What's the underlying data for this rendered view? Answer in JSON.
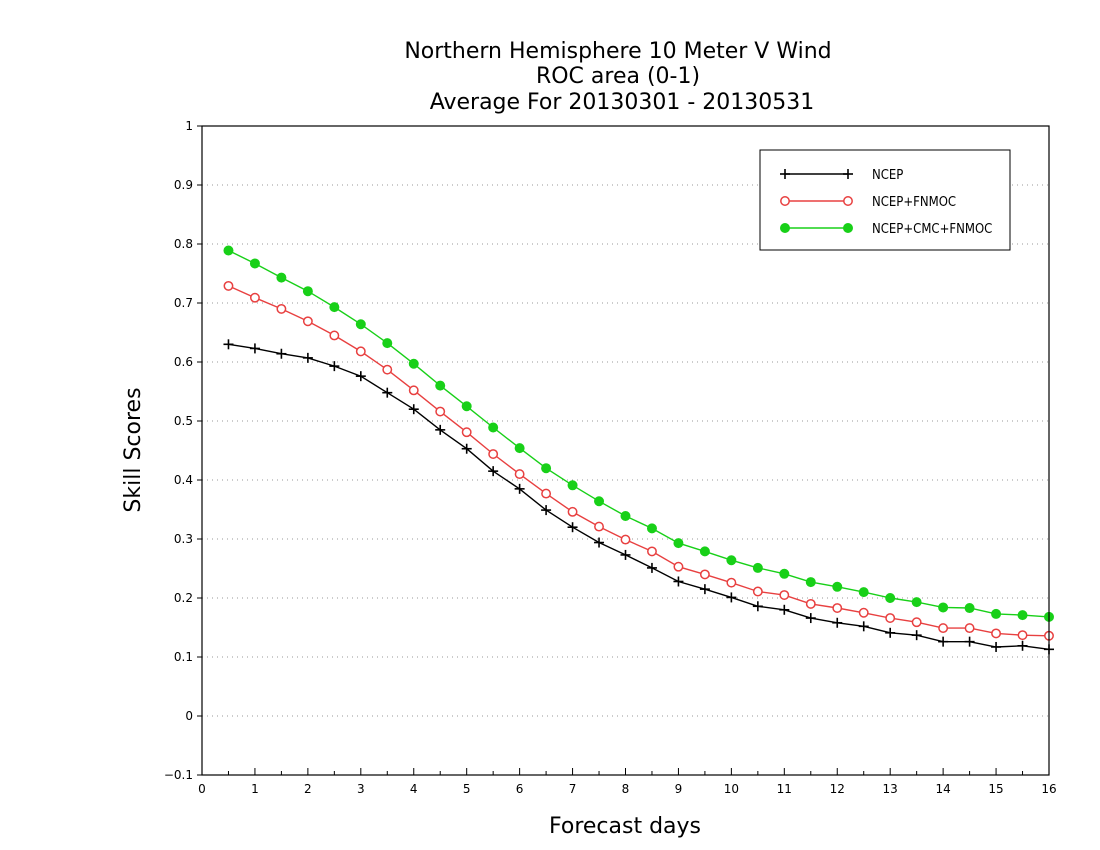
{
  "chart_data": {
    "type": "line",
    "title": [
      "Northern Hemisphere 10 Meter V Wind",
      "ROC area (0-1)",
      "Average For 20130301 - 20130531"
    ],
    "xlabel": "Forecast days",
    "ylabel": "Skill Scores",
    "xlim": [
      0,
      16
    ],
    "ylim": [
      -0.1,
      1
    ],
    "xticks": [
      "0",
      "1",
      "2",
      "3",
      "4",
      "5",
      "6",
      "7",
      "8",
      "9",
      "10",
      "11",
      "12",
      "13",
      "14",
      "15",
      "16"
    ],
    "yticks": [
      "-0.1",
      "0",
      "0.1",
      "0.2",
      "0.3",
      "0.4",
      "0.5",
      "0.6",
      "0.7",
      "0.8",
      "0.9",
      "1"
    ],
    "grid": "horizontal dotted",
    "legend_position": "top-right",
    "x": [
      0.5,
      1,
      1.5,
      2,
      2.5,
      3,
      3.5,
      4,
      4.5,
      5,
      5.5,
      6,
      6.5,
      7,
      7.5,
      8,
      8.5,
      9,
      9.5,
      10,
      10.5,
      11,
      11.5,
      12,
      12.5,
      13,
      13.5,
      14,
      14.5,
      15,
      15.5,
      16
    ],
    "series": [
      {
        "name": "NCEP",
        "color": "#000000",
        "marker": "plus",
        "values": [
          0.63,
          0.623,
          0.614,
          0.607,
          0.593,
          0.576,
          0.548,
          0.52,
          0.485,
          0.453,
          0.415,
          0.385,
          0.349,
          0.32,
          0.294,
          0.273,
          0.251,
          0.228,
          0.215,
          0.201,
          0.186,
          0.18,
          0.166,
          0.158,
          0.152,
          0.141,
          0.137,
          0.126,
          0.126,
          0.117,
          0.119,
          0.113
        ]
      },
      {
        "name": "NCEP+FNMOC",
        "color": "#e84040",
        "marker": "open-circle",
        "values": [
          0.729,
          0.709,
          0.69,
          0.669,
          0.645,
          0.618,
          0.587,
          0.552,
          0.516,
          0.481,
          0.444,
          0.41,
          0.377,
          0.346,
          0.321,
          0.299,
          0.279,
          0.253,
          0.24,
          0.226,
          0.211,
          0.205,
          0.19,
          0.183,
          0.175,
          0.166,
          0.159,
          0.149,
          0.149,
          0.14,
          0.137,
          0.136
        ]
      },
      {
        "name": "NCEP+CMC+FNMOC",
        "color": "#18d018",
        "marker": "filled-circle",
        "values": [
          0.789,
          0.767,
          0.743,
          0.72,
          0.693,
          0.664,
          0.632,
          0.597,
          0.56,
          0.525,
          0.489,
          0.454,
          0.42,
          0.391,
          0.364,
          0.339,
          0.318,
          0.293,
          0.279,
          0.264,
          0.251,
          0.241,
          0.227,
          0.219,
          0.21,
          0.2,
          0.193,
          0.184,
          0.183,
          0.173,
          0.171,
          0.168
        ]
      }
    ]
  }
}
